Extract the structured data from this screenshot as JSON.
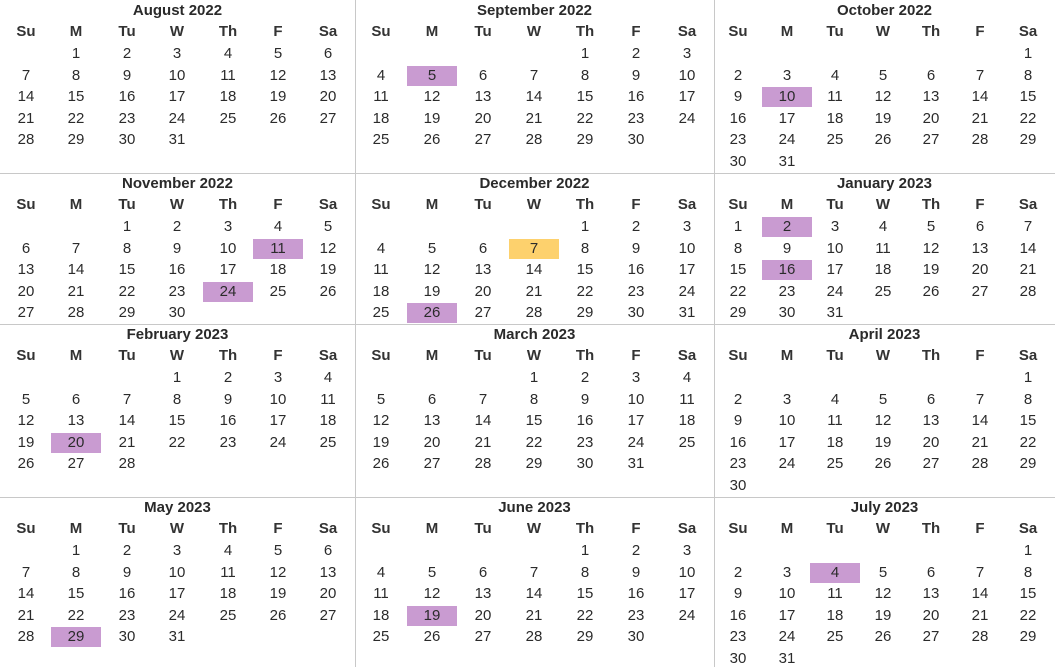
{
  "weekday_labels": [
    "Su",
    "M",
    "Tu",
    "W",
    "Th",
    "F",
    "Sa"
  ],
  "colors": {
    "highlight": "#c99bd1",
    "today": "#fdd16d",
    "grid_line": "#c8c8c8"
  },
  "months": [
    {
      "title": "August 2022",
      "year": 2022,
      "month": 8,
      "highlighted": [],
      "today": null
    },
    {
      "title": "September 2022",
      "year": 2022,
      "month": 9,
      "highlighted": [
        5
      ],
      "today": null
    },
    {
      "title": "October 2022",
      "year": 2022,
      "month": 10,
      "highlighted": [
        10
      ],
      "today": null
    },
    {
      "title": "November 2022",
      "year": 2022,
      "month": 11,
      "highlighted": [
        11,
        24
      ],
      "today": null
    },
    {
      "title": "December 2022",
      "year": 2022,
      "month": 12,
      "highlighted": [
        26
      ],
      "today": 7
    },
    {
      "title": "January 2023",
      "year": 2023,
      "month": 1,
      "highlighted": [
        2,
        16
      ],
      "today": null
    },
    {
      "title": "February 2023",
      "year": 2023,
      "month": 2,
      "highlighted": [
        20
      ],
      "today": null
    },
    {
      "title": "March 2023",
      "year": 2023,
      "month": 3,
      "highlighted": [],
      "today": null
    },
    {
      "title": "April 2023",
      "year": 2023,
      "month": 4,
      "highlighted": [],
      "today": null
    },
    {
      "title": "May 2023",
      "year": 2023,
      "month": 5,
      "highlighted": [
        29
      ],
      "today": null
    },
    {
      "title": "June 2023",
      "year": 2023,
      "month": 6,
      "highlighted": [
        19
      ],
      "today": null
    },
    {
      "title": "July 2023",
      "year": 2023,
      "month": 7,
      "highlighted": [
        4
      ],
      "today": null
    }
  ]
}
